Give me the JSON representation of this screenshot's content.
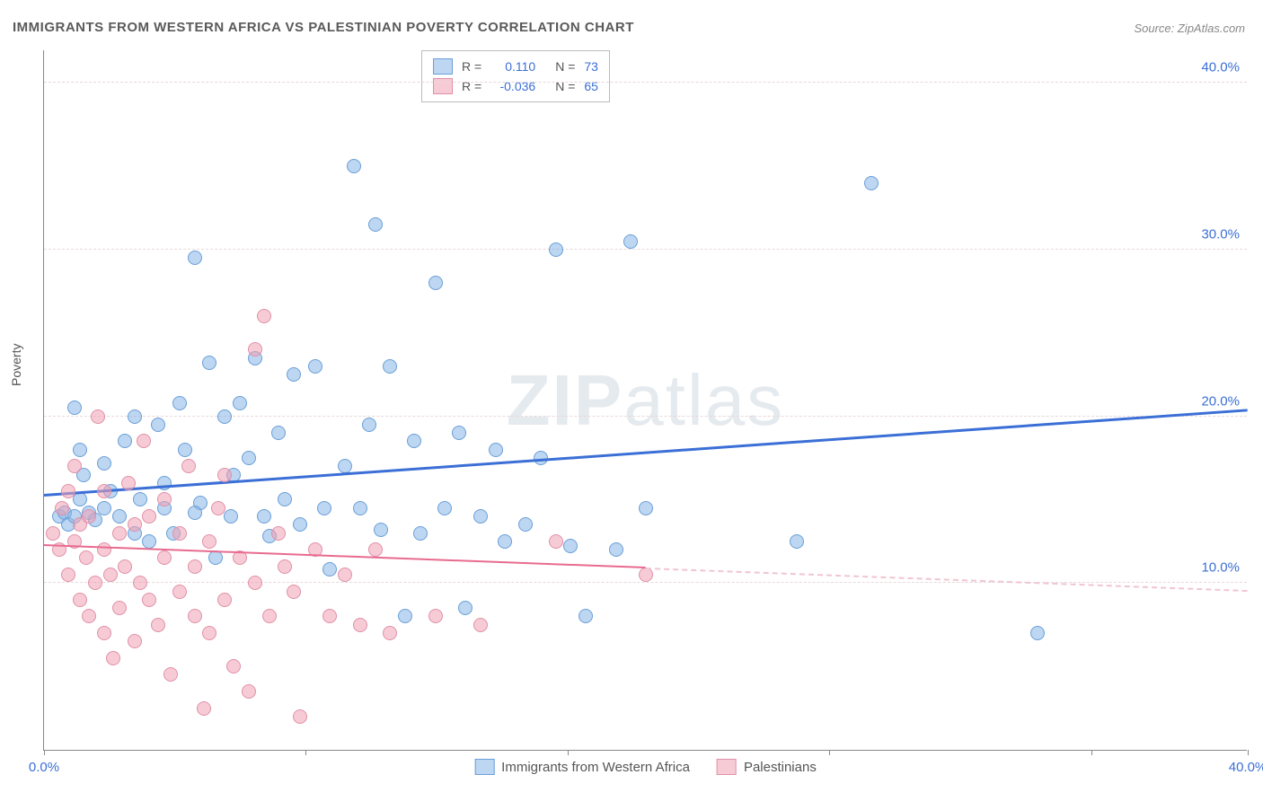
{
  "title": "IMMIGRANTS FROM WESTERN AFRICA VS PALESTINIAN POVERTY CORRELATION CHART",
  "source": "Source: ZipAtlas.com",
  "watermark": {
    "bold": "ZIP",
    "light": "atlas"
  },
  "y_axis_label": "Poverty",
  "chart": {
    "type": "scatter",
    "background_color": "#ffffff",
    "grid_color": "#e8d8d8",
    "axis_color": "#888888",
    "xlim": [
      0,
      40
    ],
    "ylim": [
      0,
      42
    ],
    "x_ticks": [
      0,
      8.7,
      17.4,
      26.1,
      34.8,
      40
    ],
    "x_tick_labels": [
      "0.0%",
      "",
      "",
      "",
      "",
      "40.0%"
    ],
    "y_ticks": [
      10,
      20,
      30,
      40
    ],
    "y_tick_labels": [
      "10.0%",
      "20.0%",
      "30.0%",
      "40.0%"
    ],
    "marker_radius": 8,
    "marker_border_width": 1,
    "series": [
      {
        "name": "Immigrants from Western Africa",
        "fill_color": "rgba(135,180,230,0.55)",
        "stroke_color": "#6a9fd8",
        "trend_color": "#3b6fd6",
        "trend_width": 3,
        "trend": {
          "x1": 0,
          "y1": 15.2,
          "x2": 40,
          "y2": 20.3,
          "solid_until_x": 40
        },
        "R": "0.110",
        "N": "73",
        "points": [
          [
            0.5,
            14.0
          ],
          [
            0.7,
            14.2
          ],
          [
            0.8,
            13.5
          ],
          [
            1.0,
            14.0
          ],
          [
            1.0,
            20.5
          ],
          [
            1.2,
            15.0
          ],
          [
            1.2,
            18.0
          ],
          [
            1.3,
            16.5
          ],
          [
            1.5,
            14.2
          ],
          [
            1.7,
            13.8
          ],
          [
            2.0,
            14.5
          ],
          [
            2.0,
            17.2
          ],
          [
            2.2,
            15.5
          ],
          [
            2.5,
            14.0
          ],
          [
            2.7,
            18.5
          ],
          [
            3.0,
            13.0
          ],
          [
            3.0,
            20.0
          ],
          [
            3.2,
            15.0
          ],
          [
            3.5,
            12.5
          ],
          [
            3.8,
            19.5
          ],
          [
            4.0,
            14.5
          ],
          [
            4.0,
            16.0
          ],
          [
            4.3,
            13.0
          ],
          [
            4.5,
            20.8
          ],
          [
            4.7,
            18.0
          ],
          [
            5.0,
            29.5
          ],
          [
            5.2,
            14.8
          ],
          [
            5.5,
            23.2
          ],
          [
            5.7,
            11.5
          ],
          [
            6.0,
            20.0
          ],
          [
            6.2,
            14.0
          ],
          [
            6.5,
            20.8
          ],
          [
            6.8,
            17.5
          ],
          [
            7.0,
            23.5
          ],
          [
            7.3,
            14.0
          ],
          [
            7.5,
            12.8
          ],
          [
            7.8,
            19.0
          ],
          [
            8.0,
            15.0
          ],
          [
            8.3,
            22.5
          ],
          [
            8.5,
            13.5
          ],
          [
            9.0,
            23.0
          ],
          [
            9.3,
            14.5
          ],
          [
            9.5,
            10.8
          ],
          [
            10.0,
            17.0
          ],
          [
            10.3,
            35.0
          ],
          [
            10.5,
            14.5
          ],
          [
            10.8,
            19.5
          ],
          [
            11.0,
            31.5
          ],
          [
            11.2,
            13.2
          ],
          [
            11.5,
            23.0
          ],
          [
            12.0,
            8.0
          ],
          [
            12.3,
            18.5
          ],
          [
            12.5,
            13.0
          ],
          [
            13.0,
            28.0
          ],
          [
            13.3,
            14.5
          ],
          [
            13.8,
            19.0
          ],
          [
            14.0,
            8.5
          ],
          [
            14.5,
            14.0
          ],
          [
            15.0,
            18.0
          ],
          [
            15.3,
            12.5
          ],
          [
            16.0,
            13.5
          ],
          [
            16.5,
            17.5
          ],
          [
            17.0,
            30.0
          ],
          [
            17.5,
            12.2
          ],
          [
            18.0,
            8.0
          ],
          [
            19.0,
            12.0
          ],
          [
            19.5,
            30.5
          ],
          [
            20.0,
            14.5
          ],
          [
            25.0,
            12.5
          ],
          [
            27.5,
            34.0
          ],
          [
            33.0,
            7.0
          ],
          [
            5.0,
            14.2
          ],
          [
            6.3,
            16.5
          ]
        ]
      },
      {
        "name": "Palestinians",
        "fill_color": "rgba(240,160,180,0.55)",
        "stroke_color": "#e090a8",
        "trend_color": "#e86b8f",
        "trend_dash_color": "#f0c5d2",
        "trend_width": 2,
        "trend": {
          "x1": 0,
          "y1": 12.2,
          "x2": 40,
          "y2": 9.5,
          "solid_until_x": 20
        },
        "R": "-0.036",
        "N": "65",
        "points": [
          [
            0.3,
            13.0
          ],
          [
            0.5,
            12.0
          ],
          [
            0.6,
            14.5
          ],
          [
            0.8,
            10.5
          ],
          [
            0.8,
            15.5
          ],
          [
            1.0,
            12.5
          ],
          [
            1.0,
            17.0
          ],
          [
            1.2,
            9.0
          ],
          [
            1.2,
            13.5
          ],
          [
            1.4,
            11.5
          ],
          [
            1.5,
            8.0
          ],
          [
            1.5,
            14.0
          ],
          [
            1.7,
            10.0
          ],
          [
            1.8,
            20.0
          ],
          [
            2.0,
            7.0
          ],
          [
            2.0,
            12.0
          ],
          [
            2.0,
            15.5
          ],
          [
            2.2,
            10.5
          ],
          [
            2.3,
            5.5
          ],
          [
            2.5,
            13.0
          ],
          [
            2.5,
            8.5
          ],
          [
            2.7,
            11.0
          ],
          [
            2.8,
            16.0
          ],
          [
            3.0,
            6.5
          ],
          [
            3.0,
            13.5
          ],
          [
            3.2,
            10.0
          ],
          [
            3.3,
            18.5
          ],
          [
            3.5,
            9.0
          ],
          [
            3.5,
            14.0
          ],
          [
            3.8,
            7.5
          ],
          [
            4.0,
            11.5
          ],
          [
            4.0,
            15.0
          ],
          [
            4.2,
            4.5
          ],
          [
            4.5,
            9.5
          ],
          [
            4.5,
            13.0
          ],
          [
            4.8,
            17.0
          ],
          [
            5.0,
            8.0
          ],
          [
            5.0,
            11.0
          ],
          [
            5.3,
            2.5
          ],
          [
            5.5,
            12.5
          ],
          [
            5.5,
            7.0
          ],
          [
            5.8,
            14.5
          ],
          [
            6.0,
            9.0
          ],
          [
            6.0,
            16.5
          ],
          [
            6.3,
            5.0
          ],
          [
            6.5,
            11.5
          ],
          [
            6.8,
            3.5
          ],
          [
            7.0,
            24.0
          ],
          [
            7.0,
            10.0
          ],
          [
            7.3,
            26.0
          ],
          [
            7.5,
            8.0
          ],
          [
            7.8,
            13.0
          ],
          [
            8.0,
            11.0
          ],
          [
            8.3,
            9.5
          ],
          [
            8.5,
            2.0
          ],
          [
            9.0,
            12.0
          ],
          [
            9.5,
            8.0
          ],
          [
            10.0,
            10.5
          ],
          [
            10.5,
            7.5
          ],
          [
            11.0,
            12.0
          ],
          [
            11.5,
            7.0
          ],
          [
            13.0,
            8.0
          ],
          [
            14.5,
            7.5
          ],
          [
            17.0,
            12.5
          ],
          [
            20.0,
            10.5
          ]
        ]
      }
    ]
  },
  "legend_top": {
    "rows": [
      {
        "swatch_fill": "rgba(135,180,230,0.55)",
        "swatch_stroke": "#6a9fd8",
        "R_label": "R =",
        "R": "0.110",
        "N_label": "N =",
        "N": "73"
      },
      {
        "swatch_fill": "rgba(240,160,180,0.55)",
        "swatch_stroke": "#e090a8",
        "R_label": "R =",
        "R": "-0.036",
        "N_label": "N =",
        "N": "65"
      }
    ]
  },
  "legend_bottom": [
    {
      "swatch_fill": "rgba(135,180,230,0.55)",
      "swatch_stroke": "#6a9fd8",
      "label": "Immigrants from Western Africa"
    },
    {
      "swatch_fill": "rgba(240,160,180,0.55)",
      "swatch_stroke": "#e090a8",
      "label": "Palestinians"
    }
  ]
}
